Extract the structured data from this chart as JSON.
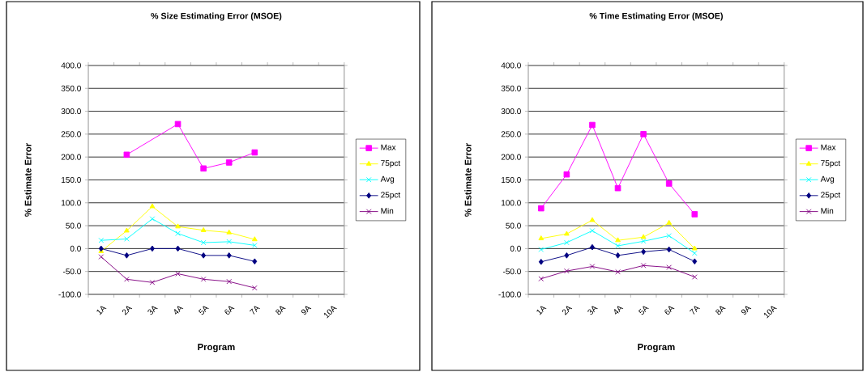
{
  "chart_data": [
    {
      "type": "line",
      "title": "% Size Estimating Error (MSOE)",
      "xlabel": "Program",
      "ylabel": "% Estimate Error",
      "categories": [
        "1A",
        "2A",
        "3A",
        "4A",
        "5A",
        "6A",
        "7A",
        "8A",
        "9A",
        "10A"
      ],
      "ylim": [
        -100,
        400
      ],
      "yticks": [
        {
          "value": -100,
          "label": "-100.0"
        },
        {
          "value": -50,
          "label": "-50.0"
        },
        {
          "value": 0,
          "label": "0.0"
        },
        {
          "value": 50,
          "label": "50.0"
        },
        {
          "value": 100,
          "label": "100.0"
        },
        {
          "value": 150,
          "label": "150.0"
        },
        {
          "value": 200,
          "label": "200.0"
        },
        {
          "value": 250,
          "label": "250.0"
        },
        {
          "value": 300,
          "label": "300.0"
        },
        {
          "value": 350,
          "label": "350.0"
        },
        {
          "value": 400,
          "label": "400.0"
        }
      ],
      "grid": "y",
      "legend": "right",
      "series": [
        {
          "name": "Max",
          "color": "#ff00ff",
          "marker": "square",
          "values": [
            null,
            205,
            null,
            272,
            175,
            188,
            210,
            null,
            null,
            null
          ]
        },
        {
          "name": "75pct",
          "color": "#ffff00",
          "marker": "triangle",
          "values": [
            -6,
            39,
            92,
            48,
            40,
            35,
            20,
            null,
            null,
            null
          ]
        },
        {
          "name": "Avg",
          "color": "#00ffff",
          "marker": "cross",
          "values": [
            18,
            21,
            65,
            33,
            13,
            15,
            7,
            null,
            null,
            null
          ]
        },
        {
          "name": "25pct",
          "color": "#000080",
          "marker": "diamond",
          "values": [
            0,
            -15,
            0,
            0,
            -15,
            -15,
            -28,
            null,
            null,
            null
          ]
        },
        {
          "name": "Min",
          "color": "#800080",
          "marker": "cross",
          "values": [
            -18,
            -67,
            -74,
            -55,
            -67,
            -72,
            -86,
            null,
            null,
            null
          ]
        }
      ]
    },
    {
      "type": "line",
      "title": "% Time Estimating Error (MSOE)",
      "xlabel": "Program",
      "ylabel": "% Estimate Error",
      "categories": [
        "1A",
        "2A",
        "3A",
        "4A",
        "5A",
        "6A",
        "7A",
        "8A",
        "9A",
        "10A"
      ],
      "ylim": [
        -100,
        400
      ],
      "yticks": [
        {
          "value": -100,
          "label": "-100.0"
        },
        {
          "value": -50,
          "label": "-50.0"
        },
        {
          "value": 0,
          "label": "0.0"
        },
        {
          "value": 50,
          "label": "50.0"
        },
        {
          "value": 100,
          "label": "100.0"
        },
        {
          "value": 150,
          "label": "150.0"
        },
        {
          "value": 200,
          "label": "200.0"
        },
        {
          "value": 250,
          "label": "250.0"
        },
        {
          "value": 300,
          "label": "300.0"
        },
        {
          "value": 350,
          "label": "350.0"
        },
        {
          "value": 400,
          "label": "400.0"
        }
      ],
      "grid": "y",
      "legend": "right",
      "series": [
        {
          "name": "Max",
          "color": "#ff00ff",
          "marker": "square",
          "values": [
            88,
            162,
            270,
            132,
            250,
            142,
            75,
            null,
            null,
            null
          ]
        },
        {
          "name": "75pct",
          "color": "#ffff00",
          "marker": "triangle",
          "values": [
            22,
            32,
            62,
            18,
            25,
            56,
            0,
            null,
            null,
            null
          ]
        },
        {
          "name": "Avg",
          "color": "#00ffff",
          "marker": "cross",
          "values": [
            -2,
            13,
            39,
            6,
            16,
            28,
            -10,
            null,
            null,
            null
          ]
        },
        {
          "name": "25pct",
          "color": "#000080",
          "marker": "diamond",
          "values": [
            -29,
            -15,
            3,
            -15,
            -7,
            -2,
            -28,
            null,
            null,
            null
          ]
        },
        {
          "name": "Min",
          "color": "#800080",
          "marker": "cross",
          "values": [
            -66,
            -49,
            -39,
            -51,
            -37,
            -41,
            -62,
            null,
            null,
            null
          ]
        }
      ]
    }
  ]
}
